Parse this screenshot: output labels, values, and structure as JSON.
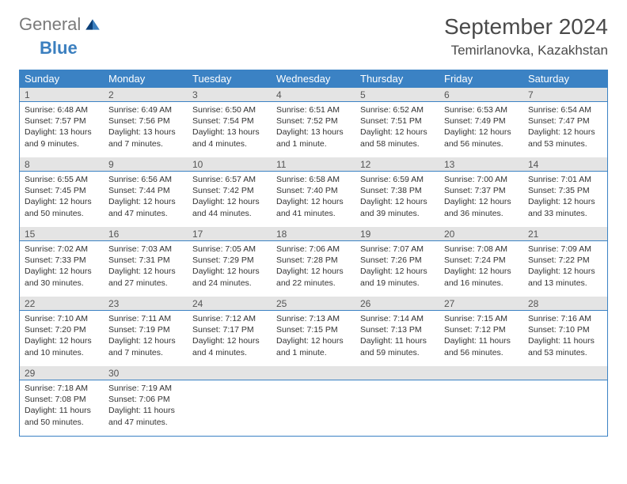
{
  "logo": {
    "text1": "General",
    "text2": "Blue"
  },
  "title": "September 2024",
  "location": "Temirlanovka, Kazakhstan",
  "colors": {
    "header_bg": "#3b82c4",
    "header_text": "#ffffff",
    "daynum_bg": "#e4e4e4",
    "border": "#3b82c4",
    "text": "#333333",
    "logo_gray": "#7a7a7a",
    "logo_blue": "#3b7fbf"
  },
  "day_names": [
    "Sunday",
    "Monday",
    "Tuesday",
    "Wednesday",
    "Thursday",
    "Friday",
    "Saturday"
  ],
  "weeks": [
    [
      {
        "n": "1",
        "sr": "Sunrise: 6:48 AM",
        "ss": "Sunset: 7:57 PM",
        "dl1": "Daylight: 13 hours",
        "dl2": "and 9 minutes."
      },
      {
        "n": "2",
        "sr": "Sunrise: 6:49 AM",
        "ss": "Sunset: 7:56 PM",
        "dl1": "Daylight: 13 hours",
        "dl2": "and 7 minutes."
      },
      {
        "n": "3",
        "sr": "Sunrise: 6:50 AM",
        "ss": "Sunset: 7:54 PM",
        "dl1": "Daylight: 13 hours",
        "dl2": "and 4 minutes."
      },
      {
        "n": "4",
        "sr": "Sunrise: 6:51 AM",
        "ss": "Sunset: 7:52 PM",
        "dl1": "Daylight: 13 hours",
        "dl2": "and 1 minute."
      },
      {
        "n": "5",
        "sr": "Sunrise: 6:52 AM",
        "ss": "Sunset: 7:51 PM",
        "dl1": "Daylight: 12 hours",
        "dl2": "and 58 minutes."
      },
      {
        "n": "6",
        "sr": "Sunrise: 6:53 AM",
        "ss": "Sunset: 7:49 PM",
        "dl1": "Daylight: 12 hours",
        "dl2": "and 56 minutes."
      },
      {
        "n": "7",
        "sr": "Sunrise: 6:54 AM",
        "ss": "Sunset: 7:47 PM",
        "dl1": "Daylight: 12 hours",
        "dl2": "and 53 minutes."
      }
    ],
    [
      {
        "n": "8",
        "sr": "Sunrise: 6:55 AM",
        "ss": "Sunset: 7:45 PM",
        "dl1": "Daylight: 12 hours",
        "dl2": "and 50 minutes."
      },
      {
        "n": "9",
        "sr": "Sunrise: 6:56 AM",
        "ss": "Sunset: 7:44 PM",
        "dl1": "Daylight: 12 hours",
        "dl2": "and 47 minutes."
      },
      {
        "n": "10",
        "sr": "Sunrise: 6:57 AM",
        "ss": "Sunset: 7:42 PM",
        "dl1": "Daylight: 12 hours",
        "dl2": "and 44 minutes."
      },
      {
        "n": "11",
        "sr": "Sunrise: 6:58 AM",
        "ss": "Sunset: 7:40 PM",
        "dl1": "Daylight: 12 hours",
        "dl2": "and 41 minutes."
      },
      {
        "n": "12",
        "sr": "Sunrise: 6:59 AM",
        "ss": "Sunset: 7:38 PM",
        "dl1": "Daylight: 12 hours",
        "dl2": "and 39 minutes."
      },
      {
        "n": "13",
        "sr": "Sunrise: 7:00 AM",
        "ss": "Sunset: 7:37 PM",
        "dl1": "Daylight: 12 hours",
        "dl2": "and 36 minutes."
      },
      {
        "n": "14",
        "sr": "Sunrise: 7:01 AM",
        "ss": "Sunset: 7:35 PM",
        "dl1": "Daylight: 12 hours",
        "dl2": "and 33 minutes."
      }
    ],
    [
      {
        "n": "15",
        "sr": "Sunrise: 7:02 AM",
        "ss": "Sunset: 7:33 PM",
        "dl1": "Daylight: 12 hours",
        "dl2": "and 30 minutes."
      },
      {
        "n": "16",
        "sr": "Sunrise: 7:03 AM",
        "ss": "Sunset: 7:31 PM",
        "dl1": "Daylight: 12 hours",
        "dl2": "and 27 minutes."
      },
      {
        "n": "17",
        "sr": "Sunrise: 7:05 AM",
        "ss": "Sunset: 7:29 PM",
        "dl1": "Daylight: 12 hours",
        "dl2": "and 24 minutes."
      },
      {
        "n": "18",
        "sr": "Sunrise: 7:06 AM",
        "ss": "Sunset: 7:28 PM",
        "dl1": "Daylight: 12 hours",
        "dl2": "and 22 minutes."
      },
      {
        "n": "19",
        "sr": "Sunrise: 7:07 AM",
        "ss": "Sunset: 7:26 PM",
        "dl1": "Daylight: 12 hours",
        "dl2": "and 19 minutes."
      },
      {
        "n": "20",
        "sr": "Sunrise: 7:08 AM",
        "ss": "Sunset: 7:24 PM",
        "dl1": "Daylight: 12 hours",
        "dl2": "and 16 minutes."
      },
      {
        "n": "21",
        "sr": "Sunrise: 7:09 AM",
        "ss": "Sunset: 7:22 PM",
        "dl1": "Daylight: 12 hours",
        "dl2": "and 13 minutes."
      }
    ],
    [
      {
        "n": "22",
        "sr": "Sunrise: 7:10 AM",
        "ss": "Sunset: 7:20 PM",
        "dl1": "Daylight: 12 hours",
        "dl2": "and 10 minutes."
      },
      {
        "n": "23",
        "sr": "Sunrise: 7:11 AM",
        "ss": "Sunset: 7:19 PM",
        "dl1": "Daylight: 12 hours",
        "dl2": "and 7 minutes."
      },
      {
        "n": "24",
        "sr": "Sunrise: 7:12 AM",
        "ss": "Sunset: 7:17 PM",
        "dl1": "Daylight: 12 hours",
        "dl2": "and 4 minutes."
      },
      {
        "n": "25",
        "sr": "Sunrise: 7:13 AM",
        "ss": "Sunset: 7:15 PM",
        "dl1": "Daylight: 12 hours",
        "dl2": "and 1 minute."
      },
      {
        "n": "26",
        "sr": "Sunrise: 7:14 AM",
        "ss": "Sunset: 7:13 PM",
        "dl1": "Daylight: 11 hours",
        "dl2": "and 59 minutes."
      },
      {
        "n": "27",
        "sr": "Sunrise: 7:15 AM",
        "ss": "Sunset: 7:12 PM",
        "dl1": "Daylight: 11 hours",
        "dl2": "and 56 minutes."
      },
      {
        "n": "28",
        "sr": "Sunrise: 7:16 AM",
        "ss": "Sunset: 7:10 PM",
        "dl1": "Daylight: 11 hours",
        "dl2": "and 53 minutes."
      }
    ],
    [
      {
        "n": "29",
        "sr": "Sunrise: 7:18 AM",
        "ss": "Sunset: 7:08 PM",
        "dl1": "Daylight: 11 hours",
        "dl2": "and 50 minutes."
      },
      {
        "n": "30",
        "sr": "Sunrise: 7:19 AM",
        "ss": "Sunset: 7:06 PM",
        "dl1": "Daylight: 11 hours",
        "dl2": "and 47 minutes."
      },
      {
        "n": "",
        "sr": "",
        "ss": "",
        "dl1": "",
        "dl2": "",
        "empty": true
      },
      {
        "n": "",
        "sr": "",
        "ss": "",
        "dl1": "",
        "dl2": "",
        "empty": true
      },
      {
        "n": "",
        "sr": "",
        "ss": "",
        "dl1": "",
        "dl2": "",
        "empty": true
      },
      {
        "n": "",
        "sr": "",
        "ss": "",
        "dl1": "",
        "dl2": "",
        "empty": true
      },
      {
        "n": "",
        "sr": "",
        "ss": "",
        "dl1": "",
        "dl2": "",
        "empty": true
      }
    ]
  ]
}
